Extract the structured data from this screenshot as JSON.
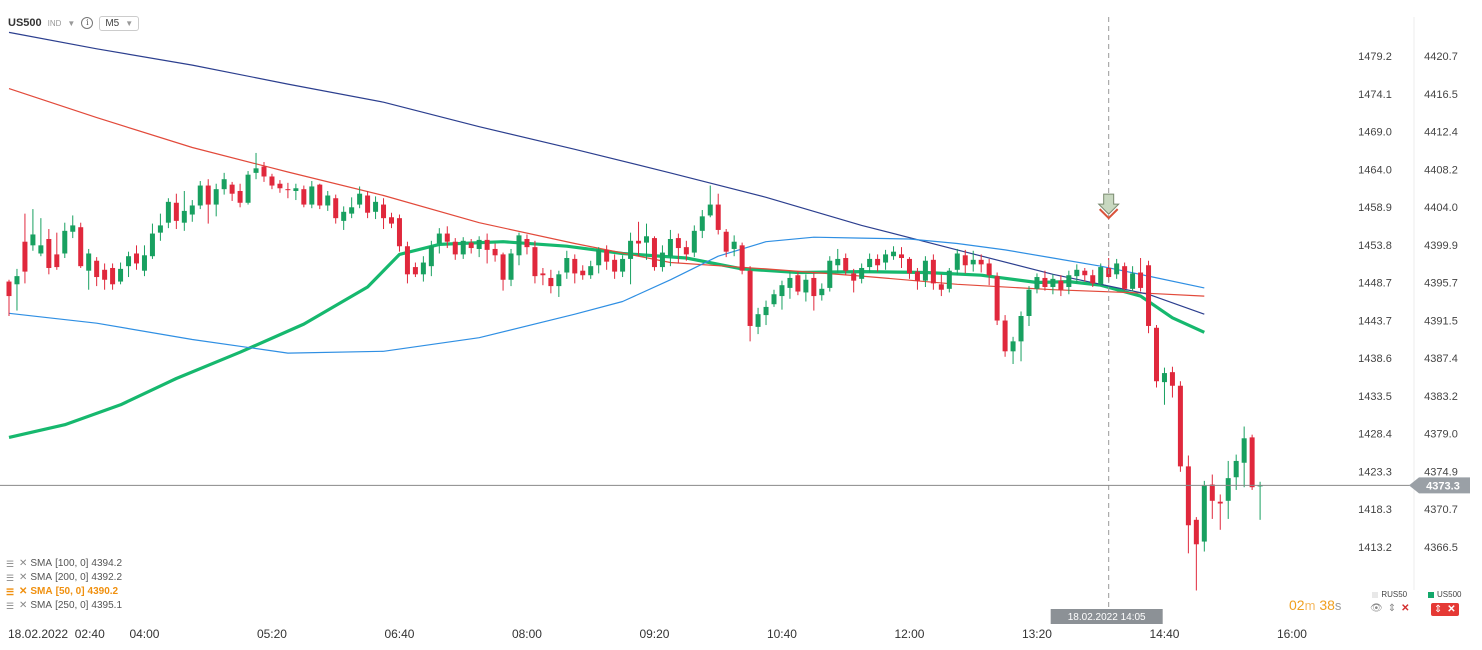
{
  "toolbar": {
    "symbol": "US500",
    "type": "IND",
    "timeframe": "M5"
  },
  "legend": [
    {
      "label": "SMA",
      "params": "[100,  0]",
      "value": "4394.2",
      "active": false
    },
    {
      "label": "SMA",
      "params": "[200,  0]",
      "value": "4392.2",
      "active": false
    },
    {
      "label": "SMA",
      "params": "[50,  0]",
      "value": "4390.2",
      "active": true
    },
    {
      "label": "SMA",
      "params": "[250,  0]",
      "value": "4395.1",
      "active": false
    }
  ],
  "timer": {
    "minutes": "02",
    "m_unit": "m",
    "seconds": "38",
    "s_unit": "s"
  },
  "instruments": [
    {
      "name": "RUS50",
      "color": "#e8e8e8"
    },
    {
      "name": "US500",
      "color": "#13a86b"
    }
  ],
  "colors": {
    "bull": "#18a060",
    "bear": "#e0283c",
    "sma50": "#16b86e",
    "sma100": "#e24a3b",
    "sma200": "#2c3f8f",
    "sma250": "#2f8fe3",
    "price_tag": "#9aa0a6"
  },
  "chart_data": {
    "type": "candlestick",
    "x_ticks": [
      "18.02.2022  02:40",
      "04:00",
      "05:20",
      "06:40",
      "08:00",
      "09:20",
      "10:40",
      "12:00",
      "13:20",
      "14:40",
      "16:00"
    ],
    "y_ticks_secondary": [
      "1479.2",
      "1474.1",
      "1469.0",
      "1464.0",
      "1458.9",
      "1453.8",
      "1448.7",
      "1443.7",
      "1438.6",
      "1433.5",
      "1428.4",
      "1423.3",
      "1418.3",
      "1413.2"
    ],
    "y_ticks": [
      "4420.7",
      "4416.5",
      "4412.4",
      "4408.2",
      "4404.0",
      "4399.9",
      "4395.7",
      "4391.5",
      "4387.4",
      "4383.2",
      "4379.0",
      "4374.9",
      "4370.7",
      "4366.5"
    ],
    "y_range": [
      4361.8,
      4424.9
    ],
    "current_price": "4373.3",
    "crosshair_label": "18.02.2022 14:05",
    "candle_interval_min": 5,
    "first_candle_time": "02:35",
    "candles": [
      [
        4395.8,
        4394.2,
        4396.0,
        4392.0
      ],
      [
        4395.5,
        4396.4,
        4397.2,
        4392.6
      ],
      [
        4400.2,
        4396.9,
        4403.3,
        4395.6
      ],
      [
        4399.8,
        4401.0,
        4403.8,
        4399.2
      ],
      [
        4398.9,
        4399.8,
        4402.8,
        4398.6
      ],
      [
        4400.5,
        4397.3,
        4401.6,
        4396.6
      ],
      [
        4398.8,
        4397.4,
        4401.2,
        4397.1
      ],
      [
        4398.9,
        4401.4,
        4402.3,
        4398.4
      ],
      [
        4401.3,
        4402.0,
        4403.1,
        4400.6
      ],
      [
        4401.8,
        4397.5,
        4402.3,
        4397.3
      ],
      [
        4397.0,
        4398.9,
        4399.4,
        4394.9
      ],
      [
        4398.1,
        4396.3,
        4398.5,
        4395.3
      ],
      [
        4397.1,
        4396.0,
        4397.8,
        4394.9
      ],
      [
        4397.3,
        4395.5,
        4397.8,
        4394.9
      ],
      [
        4395.8,
        4397.2,
        4397.9,
        4395.5
      ],
      [
        4397.5,
        4398.6,
        4399.1,
        4396.3
      ],
      [
        4398.9,
        4397.8,
        4399.8,
        4397.1
      ],
      [
        4397.0,
        4398.7,
        4399.8,
        4396.4
      ],
      [
        4398.6,
        4401.1,
        4402.2,
        4398.3
      ],
      [
        4401.2,
        4402.0,
        4403.3,
        4400.3
      ],
      [
        4402.3,
        4404.6,
        4405.0,
        4401.7
      ],
      [
        4404.5,
        4402.5,
        4405.5,
        4401.6
      ],
      [
        4402.3,
        4403.6,
        4405.8,
        4401.4
      ],
      [
        4403.2,
        4404.2,
        4404.8,
        4402.4
      ],
      [
        4404.2,
        4406.4,
        4406.9,
        4403.8
      ],
      [
        4406.4,
        4404.3,
        4407.1,
        4402.2
      ],
      [
        4404.3,
        4406.0,
        4406.6,
        4403.0
      ],
      [
        4406.0,
        4407.1,
        4407.8,
        4405.4
      ],
      [
        4406.5,
        4405.5,
        4406.8,
        4404.7
      ],
      [
        4405.8,
        4404.5,
        4406.6,
        4404.0
      ],
      [
        4404.5,
        4407.6,
        4408.0,
        4404.3
      ],
      [
        4407.8,
        4408.3,
        4410.0,
        4407.1
      ],
      [
        4408.5,
        4407.4,
        4409.0,
        4406.8
      ],
      [
        4407.4,
        4406.4,
        4407.7,
        4406.0
      ],
      [
        4406.6,
        4406.1,
        4407.0,
        4405.6
      ],
      [
        4406.0,
        4405.9,
        4406.7,
        4405.0
      ],
      [
        4405.8,
        4406.1,
        4406.6,
        4404.8
      ],
      [
        4406.0,
        4404.3,
        4406.4,
        4404.0
      ],
      [
        4404.3,
        4406.3,
        4406.9,
        4403.9
      ],
      [
        4406.5,
        4404.2,
        4406.6,
        4403.8
      ],
      [
        4404.2,
        4405.3,
        4405.8,
        4403.6
      ],
      [
        4405.0,
        4402.8,
        4405.4,
        4402.2
      ],
      [
        4402.5,
        4403.5,
        4404.1,
        4401.5
      ],
      [
        4403.3,
        4404.0,
        4405.1,
        4402.8
      ],
      [
        4404.3,
        4405.5,
        4406.3,
        4403.9
      ],
      [
        4405.3,
        4403.4,
        4405.8,
        4402.8
      ],
      [
        4403.5,
        4404.6,
        4405.2,
        4402.7
      ],
      [
        4404.3,
        4402.8,
        4405.0,
        4401.6
      ],
      [
        4402.9,
        4402.2,
        4403.4,
        4401.7
      ],
      [
        4402.8,
        4399.7,
        4403.2,
        4399.1
      ],
      [
        4399.7,
        4396.6,
        4400.2,
        4395.6
      ],
      [
        4397.4,
        4396.6,
        4397.9,
        4396.3
      ],
      [
        4396.6,
        4397.9,
        4398.6,
        4395.8
      ],
      [
        4397.5,
        4399.7,
        4400.3,
        4396.4
      ],
      [
        4400.0,
        4401.1,
        4401.7,
        4398.9
      ],
      [
        4401.1,
        4400.2,
        4401.9,
        4399.5
      ],
      [
        4400.2,
        4398.8,
        4400.6,
        4398.2
      ],
      [
        4398.8,
        4400.3,
        4400.7,
        4398.3
      ],
      [
        4400.1,
        4399.5,
        4400.5,
        4398.9
      ],
      [
        4399.4,
        4400.4,
        4400.8,
        4398.5
      ],
      [
        4400.4,
        4399.3,
        4401.1,
        4397.8
      ],
      [
        4399.4,
        4398.7,
        4400.0,
        4398.0
      ],
      [
        4398.8,
        4396.0,
        4399.0,
        4394.8
      ],
      [
        4396.0,
        4398.9,
        4399.4,
        4395.3
      ],
      [
        4398.7,
        4400.9,
        4401.2,
        4397.6
      ],
      [
        4400.5,
        4399.6,
        4401.0,
        4398.8
      ],
      [
        4399.6,
        4396.4,
        4400.3,
        4395.6
      ],
      [
        4396.7,
        4396.5,
        4397.3,
        4395.4
      ],
      [
        4396.2,
        4395.3,
        4397.1,
        4394.5
      ],
      [
        4395.3,
        4396.6,
        4397.0,
        4394.1
      ],
      [
        4396.8,
        4398.4,
        4399.2,
        4396.1
      ],
      [
        4398.3,
        4396.7,
        4398.8,
        4395.6
      ],
      [
        4397.0,
        4396.5,
        4397.6,
        4396.0
      ],
      [
        4396.5,
        4397.5,
        4398.1,
        4396.1
      ],
      [
        4397.6,
        4399.3,
        4399.6,
        4396.7
      ],
      [
        4399.3,
        4398.0,
        4399.8,
        4397.1
      ],
      [
        4398.2,
        4396.9,
        4398.8,
        4396.1
      ],
      [
        4396.9,
        4398.3,
        4398.7,
        4396.3
      ],
      [
        4398.3,
        4400.3,
        4401.2,
        4395.5
      ],
      [
        4400.3,
        4400.0,
        4402.4,
        4398.6
      ],
      [
        4400.1,
        4400.8,
        4402.2,
        4398.2
      ],
      [
        4400.6,
        4397.4,
        4400.8,
        4397.0
      ],
      [
        4397.4,
        4399.0,
        4399.8,
        4396.9
      ],
      [
        4398.6,
        4400.5,
        4401.5,
        4397.5
      ],
      [
        4400.6,
        4399.5,
        4401.1,
        4397.8
      ],
      [
        4399.6,
        4398.8,
        4400.3,
        4398.1
      ],
      [
        4399.0,
        4401.4,
        4402.0,
        4398.5
      ],
      [
        4401.4,
        4403.0,
        4403.7,
        4400.6
      ],
      [
        4403.1,
        4404.3,
        4406.4,
        4402.9
      ],
      [
        4404.3,
        4401.5,
        4405.5,
        4401.0
      ],
      [
        4401.3,
        4399.1,
        4401.6,
        4398.5
      ],
      [
        4399.4,
        4400.2,
        4400.9,
        4398.6
      ],
      [
        4399.8,
        4397.0,
        4400.1,
        4396.6
      ],
      [
        4397.0,
        4390.9,
        4397.5,
        4389.2
      ],
      [
        4390.8,
        4392.2,
        4392.9,
        4390.0
      ],
      [
        4392.1,
        4393.0,
        4393.7,
        4391.0
      ],
      [
        4393.3,
        4394.4,
        4394.9,
        4393.0
      ],
      [
        4394.2,
        4395.4,
        4395.9,
        4392.7
      ],
      [
        4395.1,
        4396.2,
        4396.9,
        4393.9
      ],
      [
        4396.5,
        4394.7,
        4396.9,
        4394.3
      ],
      [
        4394.6,
        4396.0,
        4396.6,
        4393.6
      ],
      [
        4396.2,
        4394.2,
        4396.8,
        4392.6
      ],
      [
        4394.3,
        4395.0,
        4395.6,
        4393.7
      ],
      [
        4395.1,
        4398.1,
        4398.6,
        4394.7
      ],
      [
        4397.6,
        4398.3,
        4399.4,
        4396.8
      ],
      [
        4398.4,
        4397.0,
        4398.9,
        4396.5
      ],
      [
        4396.7,
        4395.9,
        4397.2,
        4394.6
      ],
      [
        4396.1,
        4397.3,
        4397.8,
        4395.6
      ],
      [
        4397.4,
        4398.3,
        4398.9,
        4396.8
      ],
      [
        4398.3,
        4397.6,
        4398.8,
        4396.9
      ],
      [
        4397.9,
        4398.8,
        4399.3,
        4397.1
      ],
      [
        4398.6,
        4399.1,
        4399.7,
        4398.2
      ],
      [
        4398.8,
        4398.4,
        4399.6,
        4397.3
      ],
      [
        4398.3,
        4396.7,
        4398.5,
        4396.1
      ],
      [
        4396.9,
        4395.9,
        4397.3,
        4394.9
      ],
      [
        4395.9,
        4398.1,
        4398.6,
        4395.2
      ],
      [
        4398.2,
        4395.6,
        4398.8,
        4394.9
      ],
      [
        4395.5,
        4394.9,
        4396.6,
        4394.2
      ],
      [
        4395.0,
        4397.0,
        4397.3,
        4394.6
      ],
      [
        4397.1,
        4398.9,
        4399.4,
        4396.5
      ],
      [
        4398.7,
        4397.6,
        4399.3,
        4396.7
      ],
      [
        4397.7,
        4398.2,
        4399.2,
        4396.9
      ],
      [
        4398.2,
        4397.7,
        4398.8,
        4396.8
      ],
      [
        4397.8,
        4396.5,
        4398.3,
        4395.4
      ],
      [
        4396.4,
        4391.5,
        4396.8,
        4391.0
      ],
      [
        4391.5,
        4388.1,
        4392.1,
        4387.5
      ],
      [
        4388.1,
        4389.2,
        4389.7,
        4386.7
      ],
      [
        4389.2,
        4392.0,
        4392.5,
        4387.0
      ],
      [
        4392.0,
        4394.9,
        4395.3,
        4390.9
      ],
      [
        4395.0,
        4396.3,
        4396.7,
        4394.5
      ],
      [
        4396.2,
        4395.2,
        4397.0,
        4394.8
      ],
      [
        4395.2,
        4396.1,
        4396.6,
        4394.4
      ],
      [
        4395.9,
        4394.9,
        4396.5,
        4394.2
      ],
      [
        4395.2,
        4396.5,
        4397.0,
        4394.4
      ],
      [
        4396.4,
        4397.1,
        4397.7,
        4395.6
      ],
      [
        4397.0,
        4396.5,
        4397.3,
        4395.8
      ],
      [
        4396.5,
        4395.6,
        4397.1,
        4395.2
      ],
      [
        4395.5,
        4397.4,
        4397.8,
        4395.3
      ],
      [
        4397.3,
        4396.3,
        4398.4,
        4395.8
      ],
      [
        4396.6,
        4397.8,
        4398.3,
        4396.1
      ],
      [
        4397.5,
        4395.0,
        4397.9,
        4394.8
      ],
      [
        4395.0,
        4396.7,
        4397.5,
        4394.7
      ],
      [
        4396.8,
        4395.1,
        4398.4,
        4394.7
      ],
      [
        4397.6,
        4390.9,
        4398.1,
        4390.1
      ],
      [
        4390.7,
        4384.8,
        4391.0,
        4384.1
      ],
      [
        4384.7,
        4385.7,
        4386.3,
        4382.2
      ],
      [
        4385.8,
        4384.3,
        4386.4,
        4383.0
      ],
      [
        4384.3,
        4375.4,
        4384.8,
        4374.8
      ],
      [
        4375.4,
        4368.9,
        4376.6,
        4365.8
      ],
      [
        4369.5,
        4366.8,
        4369.8,
        4361.7
      ],
      [
        4367.1,
        4373.3,
        4373.8,
        4366.0
      ],
      [
        4373.4,
        4371.6,
        4374.5,
        4369.6
      ],
      [
        4371.5,
        4371.3,
        4372.3,
        4368.4
      ],
      [
        4371.6,
        4374.1,
        4376.0,
        4369.6
      ],
      [
        4374.2,
        4376.0,
        4376.7,
        4372.8
      ],
      [
        4375.8,
        4378.5,
        4379.8,
        4373.1
      ],
      [
        4378.6,
        4373.1,
        4378.9,
        4372.8
      ],
      [
        4373.2,
        4373.3,
        4373.7,
        4369.5
      ]
    ],
    "sma": [
      {
        "name": "SMA [50, 0]",
        "color": "#16b86e",
        "points": [
          [
            "02:35",
            4378.6
          ],
          [
            "03:10",
            4380.0
          ],
          [
            "03:45",
            4382.2
          ],
          [
            "04:20",
            4385.1
          ],
          [
            "05:00",
            4388.0
          ],
          [
            "05:40",
            4391.1
          ],
          [
            "06:20",
            4395.2
          ],
          [
            "06:40",
            4398.8
          ],
          [
            "07:05",
            4399.9
          ],
          [
            "07:45",
            4400.2
          ],
          [
            "08:25",
            4399.7
          ],
          [
            "09:00",
            4398.9
          ],
          [
            "09:40",
            4398.4
          ],
          [
            "10:15",
            4397.2
          ],
          [
            "10:50",
            4396.8
          ],
          [
            "11:30",
            4396.9
          ],
          [
            "12:10",
            4396.8
          ],
          [
            "12:45",
            4396.5
          ],
          [
            "13:20",
            4395.7
          ],
          [
            "13:40",
            4395.8
          ],
          [
            "14:00",
            4395.4
          ],
          [
            "14:25",
            4394.2
          ],
          [
            "14:45",
            4391.8
          ],
          [
            "15:05",
            4390.2
          ]
        ]
      },
      {
        "name": "SMA [100, 0]",
        "color": "#e24a3b",
        "points": [
          [
            "02:35",
            4417.1
          ],
          [
            "03:30",
            4413.9
          ],
          [
            "04:30",
            4410.6
          ],
          [
            "05:30",
            4407.9
          ],
          [
            "06:30",
            4405.3
          ],
          [
            "07:30",
            4402.3
          ],
          [
            "08:30",
            4400.0
          ],
          [
            "09:30",
            4397.9
          ],
          [
            "10:30",
            4397.2
          ],
          [
            "11:30",
            4396.4
          ],
          [
            "12:30",
            4395.5
          ],
          [
            "13:30",
            4394.9
          ],
          [
            "14:30",
            4394.5
          ],
          [
            "15:05",
            4394.2
          ]
        ]
      },
      {
        "name": "SMA [200, 0]",
        "color": "#2c3f8f",
        "points": [
          [
            "02:35",
            4423.3
          ],
          [
            "03:30",
            4421.5
          ],
          [
            "04:30",
            4419.7
          ],
          [
            "05:30",
            4417.6
          ],
          [
            "06:30",
            4415.6
          ],
          [
            "07:30",
            4412.9
          ],
          [
            "08:30",
            4410.4
          ],
          [
            "09:30",
            4407.8
          ],
          [
            "10:30",
            4405.1
          ],
          [
            "11:30",
            4402.0
          ],
          [
            "12:30",
            4399.3
          ],
          [
            "13:30",
            4396.6
          ],
          [
            "14:30",
            4394.4
          ],
          [
            "15:05",
            4392.2
          ]
        ]
      },
      {
        "name": "SMA [250, 0]",
        "color": "#2f8fe3",
        "points": [
          [
            "02:35",
            4392.3
          ],
          [
            "03:30",
            4391.2
          ],
          [
            "04:30",
            4389.4
          ],
          [
            "05:30",
            4387.9
          ],
          [
            "06:30",
            4388.1
          ],
          [
            "07:30",
            4389.6
          ],
          [
            "08:30",
            4392.2
          ],
          [
            "09:00",
            4393.6
          ],
          [
            "09:30",
            4396.0
          ],
          [
            "10:00",
            4398.6
          ],
          [
            "10:30",
            4400.2
          ],
          [
            "11:00",
            4400.7
          ],
          [
            "11:30",
            4400.6
          ],
          [
            "12:00",
            4400.5
          ],
          [
            "12:30",
            4400.0
          ],
          [
            "13:00",
            4399.3
          ],
          [
            "13:30",
            4398.4
          ],
          [
            "14:00",
            4397.5
          ],
          [
            "14:30",
            4396.4
          ],
          [
            "15:05",
            4395.1
          ]
        ]
      }
    ],
    "signal_marker": {
      "time": "14:05",
      "price": 4401.7
    }
  }
}
